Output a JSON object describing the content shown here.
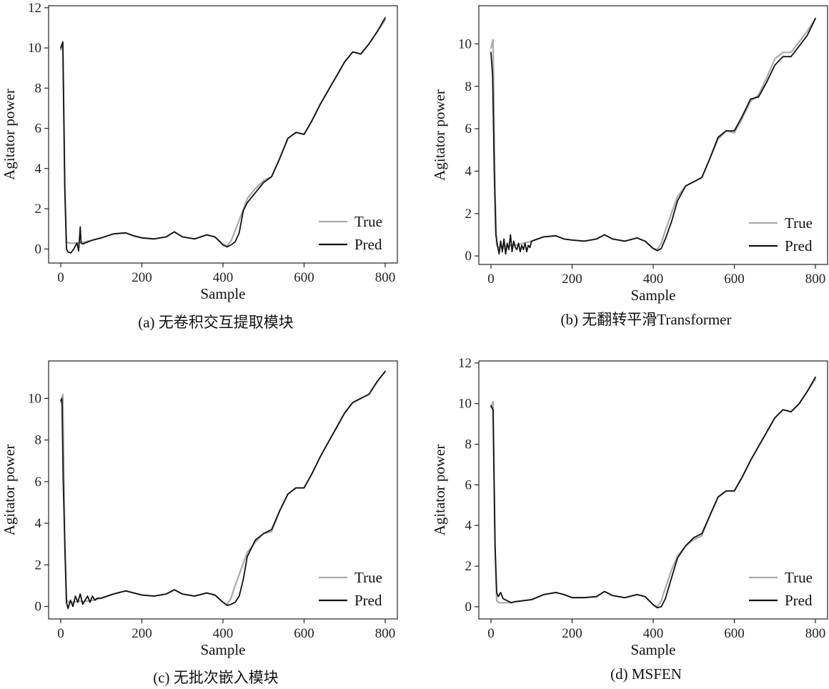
{
  "chart_data": [
    {
      "type": "line",
      "caption": "(a) 无卷积交互提取模块",
      "xlabel": "Sample",
      "ylabel": "Agitator power",
      "xlim": [
        -30,
        830
      ],
      "ylim": [
        -0.7,
        12.1
      ],
      "xticks": [
        0,
        200,
        400,
        600,
        800
      ],
      "yticks": [
        0,
        2,
        4,
        6,
        8,
        10,
        12
      ],
      "legend_position": "lower-right",
      "series": [
        {
          "name": "True",
          "color": "#aaaaaa",
          "x": [
            0,
            5,
            10,
            14,
            20,
            30,
            45,
            60,
            80,
            100,
            130,
            160,
            180,
            200,
            230,
            260,
            280,
            300,
            330,
            360,
            380,
            400,
            410,
            420,
            430,
            445,
            460,
            480,
            500,
            520,
            540,
            560,
            580,
            600,
            620,
            640,
            660,
            680,
            700,
            720,
            740,
            760,
            780,
            800
          ],
          "y": [
            9.9,
            10.2,
            3.0,
            0.35,
            0.3,
            0.28,
            0.3,
            0.35,
            0.45,
            0.55,
            0.75,
            0.8,
            0.65,
            0.55,
            0.5,
            0.6,
            0.85,
            0.6,
            0.5,
            0.7,
            0.6,
            0.25,
            0.15,
            0.4,
            0.9,
            1.7,
            2.5,
            3.0,
            3.4,
            3.6,
            4.5,
            5.5,
            5.8,
            5.7,
            6.4,
            7.2,
            7.9,
            8.6,
            9.3,
            9.8,
            9.7,
            10.2,
            10.8,
            11.4
          ]
        },
        {
          "name": "Pred",
          "color": "#111111",
          "x": [
            0,
            5,
            10,
            14,
            18,
            25,
            32,
            40,
            44,
            48,
            50,
            55,
            60,
            80,
            100,
            130,
            160,
            180,
            200,
            230,
            260,
            280,
            300,
            330,
            360,
            380,
            400,
            410,
            420,
            430,
            440,
            450,
            460,
            480,
            500,
            520,
            540,
            560,
            580,
            600,
            620,
            640,
            660,
            680,
            700,
            720,
            740,
            760,
            780,
            800
          ],
          "y": [
            10.0,
            10.3,
            3.0,
            0.0,
            -0.15,
            -0.2,
            0.0,
            0.3,
            -0.1,
            1.1,
            0.3,
            0.25,
            0.3,
            0.45,
            0.55,
            0.75,
            0.8,
            0.65,
            0.55,
            0.5,
            0.6,
            0.85,
            0.6,
            0.5,
            0.7,
            0.6,
            0.2,
            0.1,
            0.2,
            0.35,
            0.8,
            1.9,
            2.3,
            2.8,
            3.3,
            3.6,
            4.5,
            5.5,
            5.8,
            5.7,
            6.4,
            7.2,
            7.9,
            8.6,
            9.3,
            9.8,
            9.7,
            10.2,
            10.8,
            11.5
          ]
        }
      ]
    },
    {
      "type": "line",
      "caption": "(b) 无翻转平滑Transformer",
      "xlabel": "Sample",
      "ylabel": "Agitator power",
      "xlim": [
        -30,
        830
      ],
      "ylim": [
        -0.4,
        11.8
      ],
      "xticks": [
        0,
        200,
        400,
        600,
        800
      ],
      "yticks": [
        0,
        2,
        4,
        6,
        8,
        10
      ],
      "legend_position": "lower-right",
      "series": [
        {
          "name": "True",
          "color": "#aaaaaa",
          "x": [
            0,
            5,
            10,
            14,
            20,
            30,
            45,
            60,
            80,
            100,
            130,
            160,
            180,
            200,
            230,
            260,
            280,
            300,
            330,
            360,
            380,
            400,
            410,
            420,
            430,
            445,
            460,
            480,
            500,
            520,
            540,
            560,
            580,
            600,
            620,
            640,
            660,
            680,
            700,
            720,
            740,
            760,
            780,
            800
          ],
          "y": [
            9.8,
            10.2,
            3.0,
            0.5,
            0.4,
            0.45,
            0.5,
            0.5,
            0.6,
            0.7,
            0.9,
            0.95,
            0.8,
            0.75,
            0.7,
            0.8,
            1.0,
            0.8,
            0.7,
            0.85,
            0.7,
            0.35,
            0.3,
            0.6,
            1.2,
            2.0,
            2.8,
            3.3,
            3.5,
            3.7,
            4.6,
            5.5,
            5.9,
            5.8,
            6.5,
            7.3,
            7.6,
            8.4,
            9.3,
            9.6,
            9.6,
            10.1,
            10.6,
            11.2
          ]
        },
        {
          "name": "Pred",
          "color": "#111111",
          "x": [
            0,
            4,
            8,
            12,
            16,
            20,
            24,
            28,
            32,
            36,
            40,
            44,
            48,
            52,
            56,
            60,
            64,
            68,
            72,
            76,
            80,
            84,
            88,
            92,
            96,
            100,
            130,
            160,
            180,
            200,
            230,
            260,
            280,
            300,
            330,
            360,
            380,
            400,
            410,
            420,
            430,
            445,
            460,
            480,
            500,
            520,
            540,
            560,
            580,
            600,
            620,
            640,
            660,
            680,
            700,
            720,
            740,
            760,
            780,
            800
          ],
          "y": [
            9.6,
            8.5,
            4.0,
            1.0,
            0.5,
            0.1,
            0.7,
            0.2,
            0.8,
            0.1,
            0.6,
            0.3,
            1.0,
            0.2,
            0.7,
            0.4,
            0.3,
            0.6,
            0.2,
            0.5,
            0.3,
            0.6,
            0.2,
            0.5,
            0.4,
            0.7,
            0.9,
            0.95,
            0.8,
            0.75,
            0.7,
            0.8,
            1.0,
            0.8,
            0.7,
            0.85,
            0.7,
            0.35,
            0.25,
            0.35,
            0.8,
            1.6,
            2.6,
            3.3,
            3.5,
            3.7,
            4.6,
            5.6,
            5.9,
            5.9,
            6.6,
            7.4,
            7.5,
            8.2,
            9.0,
            9.4,
            9.4,
            9.9,
            10.4,
            11.2
          ]
        }
      ]
    },
    {
      "type": "line",
      "caption": "(c) 无批次嵌入模块",
      "xlabel": "Sample",
      "ylabel": "Agitator power",
      "xlim": [
        -30,
        830
      ],
      "ylim": [
        -0.6,
        11.8
      ],
      "xticks": [
        0,
        200,
        400,
        600,
        800
      ],
      "yticks": [
        0,
        2,
        4,
        6,
        8,
        10
      ],
      "legend_position": "lower-right",
      "series": [
        {
          "name": "True",
          "color": "#aaaaaa",
          "x": [
            0,
            5,
            10,
            14,
            20,
            30,
            45,
            60,
            80,
            100,
            130,
            160,
            180,
            200,
            230,
            260,
            280,
            300,
            330,
            360,
            380,
            400,
            410,
            420,
            430,
            445,
            460,
            480,
            500,
            520,
            540,
            560,
            580,
            600,
            620,
            640,
            660,
            680,
            700,
            720,
            740,
            760,
            780,
            800
          ],
          "y": [
            9.8,
            10.2,
            3.0,
            0.3,
            0.2,
            0.2,
            0.25,
            0.25,
            0.3,
            0.4,
            0.6,
            0.75,
            0.65,
            0.55,
            0.5,
            0.6,
            0.8,
            0.6,
            0.5,
            0.65,
            0.55,
            0.2,
            0.1,
            0.4,
            1.0,
            1.8,
            2.6,
            3.1,
            3.5,
            3.6,
            4.6,
            5.4,
            5.7,
            5.7,
            6.4,
            7.2,
            7.9,
            8.6,
            9.3,
            9.8,
            10.0,
            10.2,
            10.8,
            11.3
          ]
        },
        {
          "name": "Pred",
          "color": "#111111",
          "x": [
            0,
            3,
            6,
            10,
            14,
            18,
            24,
            30,
            36,
            42,
            48,
            54,
            60,
            66,
            72,
            78,
            84,
            90,
            100,
            130,
            160,
            180,
            200,
            230,
            260,
            280,
            300,
            330,
            360,
            380,
            400,
            410,
            420,
            430,
            440,
            450,
            460,
            480,
            500,
            520,
            540,
            560,
            580,
            600,
            620,
            640,
            660,
            680,
            700,
            720,
            740,
            760,
            780,
            800
          ],
          "y": [
            9.9,
            10.0,
            6.1,
            3.0,
            0.2,
            -0.1,
            0.3,
            0.0,
            0.5,
            0.2,
            0.6,
            0.1,
            0.3,
            0.5,
            0.2,
            0.5,
            0.3,
            0.4,
            0.4,
            0.6,
            0.75,
            0.65,
            0.55,
            0.5,
            0.6,
            0.8,
            0.6,
            0.5,
            0.65,
            0.55,
            0.2,
            0.05,
            0.1,
            0.2,
            0.5,
            1.3,
            2.4,
            3.2,
            3.5,
            3.7,
            4.6,
            5.4,
            5.7,
            5.7,
            6.4,
            7.2,
            7.9,
            8.6,
            9.3,
            9.8,
            10.0,
            10.2,
            10.8,
            11.3
          ]
        }
      ]
    },
    {
      "type": "line",
      "caption": "(d) MSFEN",
      "xlabel": "Sample",
      "ylabel": "Agitator power",
      "xlim": [
        -30,
        830
      ],
      "ylim": [
        -0.6,
        12.1
      ],
      "xticks": [
        0,
        200,
        400,
        600,
        800
      ],
      "yticks": [
        0,
        2,
        4,
        6,
        8,
        10,
        12
      ],
      "legend_position": "lower-right",
      "series": [
        {
          "name": "True",
          "color": "#aaaaaa",
          "x": [
            0,
            5,
            10,
            14,
            20,
            30,
            45,
            60,
            80,
            100,
            130,
            160,
            180,
            200,
            230,
            260,
            280,
            300,
            330,
            360,
            380,
            400,
            410,
            420,
            430,
            445,
            460,
            480,
            500,
            520,
            540,
            560,
            580,
            600,
            620,
            640,
            660,
            680,
            700,
            720,
            740,
            760,
            780,
            800
          ],
          "y": [
            9.8,
            10.1,
            3.0,
            0.3,
            0.2,
            0.2,
            0.2,
            0.25,
            0.3,
            0.35,
            0.6,
            0.7,
            0.6,
            0.45,
            0.45,
            0.5,
            0.75,
            0.55,
            0.45,
            0.6,
            0.5,
            0.1,
            0.0,
            0.3,
            0.9,
            1.8,
            2.5,
            3.0,
            3.3,
            3.5,
            4.5,
            5.4,
            5.7,
            5.7,
            6.4,
            7.2,
            7.9,
            8.6,
            9.3,
            9.7,
            9.6,
            10.0,
            10.6,
            11.2
          ]
        },
        {
          "name": "Pred",
          "color": "#111111",
          "x": [
            0,
            5,
            10,
            14,
            18,
            24,
            30,
            40,
            50,
            60,
            80,
            100,
            130,
            160,
            180,
            200,
            230,
            260,
            280,
            300,
            330,
            360,
            380,
            400,
            410,
            420,
            430,
            445,
            460,
            480,
            500,
            520,
            540,
            560,
            580,
            600,
            620,
            640,
            660,
            680,
            700,
            720,
            740,
            760,
            780,
            800
          ],
          "y": [
            9.9,
            9.7,
            3.0,
            0.7,
            0.5,
            0.7,
            0.4,
            0.3,
            0.2,
            0.25,
            0.3,
            0.35,
            0.6,
            0.7,
            0.6,
            0.45,
            0.45,
            0.5,
            0.75,
            0.55,
            0.45,
            0.6,
            0.5,
            0.1,
            -0.05,
            0.0,
            0.4,
            1.4,
            2.4,
            3.0,
            3.4,
            3.6,
            4.5,
            5.4,
            5.7,
            5.7,
            6.4,
            7.2,
            7.9,
            8.6,
            9.3,
            9.7,
            9.6,
            10.0,
            10.6,
            11.3
          ]
        }
      ]
    }
  ]
}
